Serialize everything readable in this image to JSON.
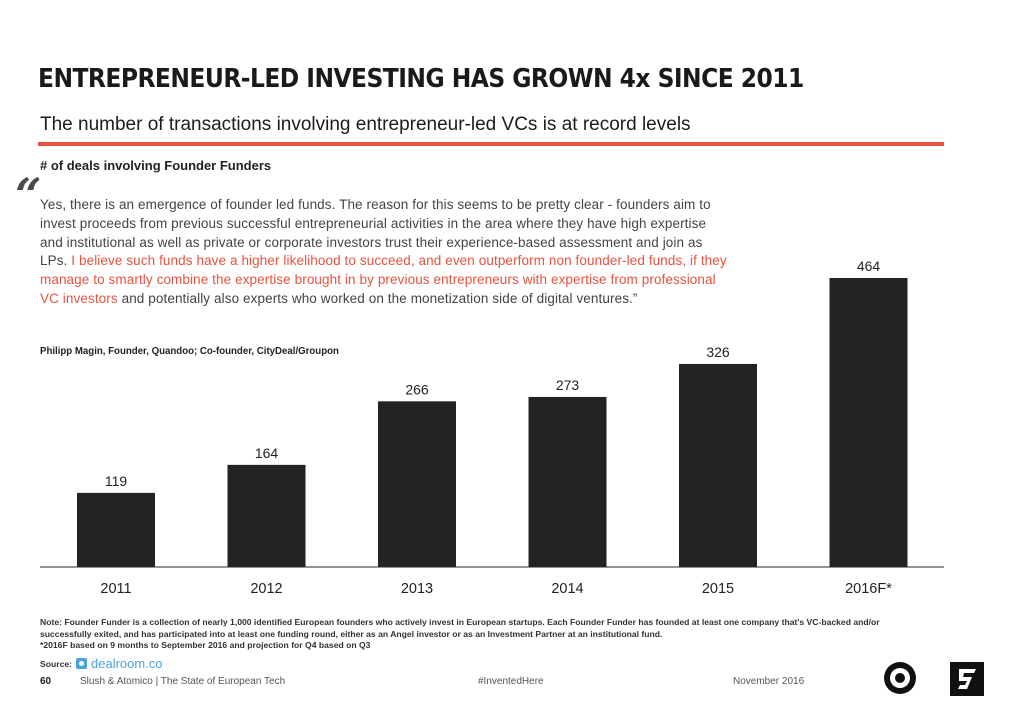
{
  "header": {
    "title": "ENTREPRENEUR-LED INVESTING HAS GROWN 4x SINCE 2011",
    "subtitle": "The number of transactions involving entrepreneur-led VCs is at record levels",
    "chart_label": "# of deals involving Founder Funders"
  },
  "quote": {
    "text_before": "Yes, there is an emergence of founder led funds. The reason for this seems to be pretty clear - founders aim to invest proceeds from previous successful entrepreneurial activities in the area where they have high expertise and institutional as well as private or corporate investors trust their experience-based assessment and join as LPs.",
    "text_highlight": "I believe such funds have a higher likelihood to succeed, and even outperform non founder-led funds, if they manage to smartly combine the expertise brought in by previous entrepreneurs with expertise from professional VC investors",
    "text_after": "and potentially also experts who worked on the monetization side of digital ventures.”",
    "attribution": "Philipp Magin, Founder, Quandoo; Co-founder, CityDeal/Groupon"
  },
  "chart_data": {
    "type": "bar",
    "categories": [
      "2011",
      "2012",
      "2013",
      "2014",
      "2015",
      "2016F*"
    ],
    "values": [
      119,
      164,
      266,
      273,
      326,
      464
    ],
    "value_labels": [
      "119",
      "164",
      "266",
      "273",
      "326",
      "464"
    ],
    "title": "# of deals involving Founder Funders",
    "xlabel": "",
    "ylabel": "",
    "ylim": [
      0,
      464
    ],
    "grid": false,
    "legend": "none",
    "bar_color": "#232323"
  },
  "notes": {
    "note": "Note: Founder Funder is a collection of nearly 1,000 identified European founders who actively invest in European startups. Each Founder Funder has founded at least one company that's VC-backed and/or successfully exited, and has participated into at least one funding round, either as an Angel investor or as an Investment Partner at an institutional fund.",
    "forecast_note": "*2016F based on 9 months to September 2016 and projection for Q4 based on Q3",
    "source_label": "Source:",
    "source_name": "dealroom.co"
  },
  "footer": {
    "page": "60",
    "publication": "Slush & Atomico  |  The State of European Tech",
    "hashtag": "#InventedHere",
    "date": "November 2016"
  },
  "colors": {
    "accent": "#e8533f",
    "dealroom": "#4aa3df",
    "bar": "#232323"
  }
}
